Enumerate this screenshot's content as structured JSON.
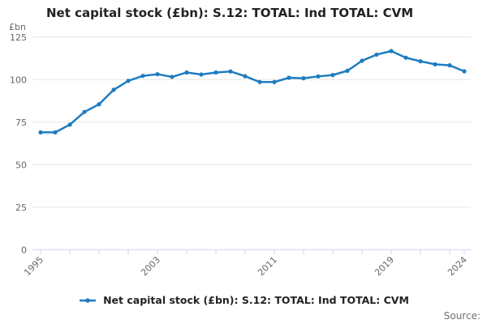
{
  "header": {
    "title": "Net capital stock (£bn): S.12: TOTAL: Ind TOTAL: CVM"
  },
  "legend": {
    "label": "Net capital stock (£bn): S.12: TOTAL: Ind TOTAL: CVM"
  },
  "footer": {
    "source_label": "Source:"
  },
  "colors": {
    "line": "#1d7cc0",
    "grid": "#e6e6e6",
    "axis": "#ccd6eb",
    "label": "#666666",
    "title": "#222222"
  },
  "chart_data": {
    "type": "line",
    "title": "Net capital stock (£bn): S.12: TOTAL: Ind TOTAL: CVM",
    "xlabel": "",
    "ylabel": "£bn",
    "ylim": [
      0,
      125
    ],
    "y_ticks": [
      0,
      25,
      50,
      75,
      100,
      125
    ],
    "x_ticks": [
      1995,
      1997,
      1999,
      2001,
      2003,
      2005,
      2007,
      2009,
      2011,
      2013,
      2015,
      2017,
      2019,
      2021,
      2023,
      2024
    ],
    "x_tick_labels": [
      "1995",
      "2003",
      "2011",
      "2019",
      "2024"
    ],
    "grid": "horizontal",
    "legend_position": "bottom",
    "marker": "circle",
    "x": [
      1995,
      1996,
      1997,
      1998,
      1999,
      2000,
      2001,
      2002,
      2003,
      2004,
      2005,
      2006,
      2007,
      2008,
      2009,
      2010,
      2011,
      2012,
      2013,
      2014,
      2015,
      2016,
      2017,
      2018,
      2019,
      2020,
      2021,
      2022,
      2023,
      2024
    ],
    "series": [
      {
        "name": "Net capital stock (£bn): S.12: TOTAL: Ind TOTAL: CVM",
        "values": [
          69.0,
          69.0,
          73.5,
          81.0,
          85.5,
          94.0,
          99.3,
          102.2,
          103.2,
          101.6,
          104.2,
          103.0,
          104.2,
          104.8,
          102.0,
          98.6,
          98.6,
          101.1,
          100.8,
          101.9,
          102.7,
          105.2,
          111.1,
          114.7,
          116.8,
          112.9,
          110.8,
          109.0,
          108.4,
          104.9
        ]
      }
    ]
  }
}
